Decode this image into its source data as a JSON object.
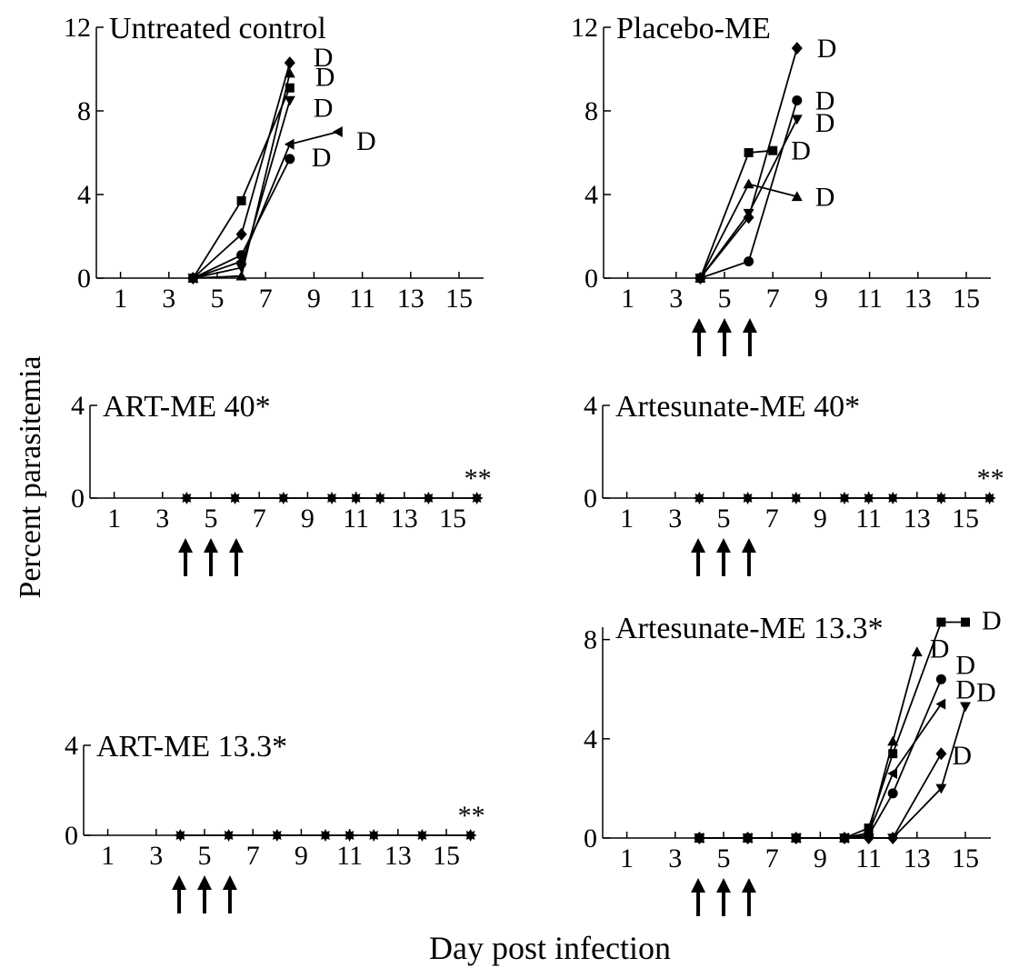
{
  "figure": {
    "ylabel": "Percent parasitemia",
    "xlabel": "Day post infection",
    "arrow_days": [
      4,
      5,
      6
    ]
  },
  "chart_data": [
    {
      "id": "untreated",
      "type": "line",
      "title": "Untreated control",
      "xticks": [
        1,
        3,
        5,
        7,
        9,
        11,
        13,
        15
      ],
      "yticks": [
        0,
        4,
        8,
        12
      ],
      "xlim": [
        0,
        16
      ],
      "ylim": [
        0,
        12
      ],
      "series": [
        {
          "marker": "square",
          "x": [
            4,
            6,
            8
          ],
          "y": [
            0,
            3.7,
            9.1
          ],
          "label": "D"
        },
        {
          "marker": "diamond",
          "x": [
            4,
            6,
            8
          ],
          "y": [
            0,
            2.1,
            10.3
          ],
          "label": "D"
        },
        {
          "marker": "tri-down",
          "x": [
            4,
            6,
            8
          ],
          "y": [
            0,
            0.5,
            8.5
          ],
          "label": "D"
        },
        {
          "marker": "tri-left",
          "x": [
            4,
            6,
            8,
            10
          ],
          "y": [
            0,
            0.8,
            6.4,
            7.0
          ],
          "label": "D"
        },
        {
          "marker": "circle",
          "x": [
            4,
            6,
            8
          ],
          "y": [
            0,
            1.1,
            5.7
          ],
          "label": "D"
        },
        {
          "marker": "tri-up",
          "x": [
            4,
            6,
            8
          ],
          "y": [
            0,
            0.1,
            9.8
          ]
        }
      ]
    },
    {
      "id": "placebo",
      "type": "line",
      "title": "Placebo-ME",
      "xticks": [
        1,
        3,
        5,
        7,
        9,
        11,
        13,
        15
      ],
      "yticks": [
        0,
        4,
        8,
        12
      ],
      "xlim": [
        0,
        16
      ],
      "ylim": [
        0,
        12
      ],
      "series": [
        {
          "marker": "diamond",
          "x": [
            4,
            6,
            8
          ],
          "y": [
            0,
            2.9,
            11.0
          ],
          "label": "D"
        },
        {
          "marker": "circle",
          "x": [
            4,
            6,
            8
          ],
          "y": [
            0,
            0.8,
            8.5
          ],
          "label": "D"
        },
        {
          "marker": "tri-down",
          "x": [
            4,
            6,
            8
          ],
          "y": [
            0,
            3.1,
            7.6
          ],
          "label": "D"
        },
        {
          "marker": "square",
          "x": [
            4,
            6,
            7
          ],
          "y": [
            0,
            6.0,
            6.1
          ],
          "label": "D"
        },
        {
          "marker": "tri-up",
          "x": [
            4,
            6,
            8
          ],
          "y": [
            0,
            4.5,
            3.9
          ],
          "label": "D"
        }
      ]
    },
    {
      "id": "artme40",
      "type": "line",
      "title": "ART-ME 40*",
      "xticks": [
        1,
        3,
        5,
        7,
        9,
        11,
        13,
        15
      ],
      "yticks": [
        0,
        4
      ],
      "xlim": [
        0,
        16
      ],
      "ylim": [
        0,
        4
      ],
      "series": [
        {
          "marker": "star",
          "x": [
            4,
            6,
            8,
            10,
            11,
            12,
            14,
            16
          ],
          "y": [
            0,
            0,
            0,
            0,
            0,
            0,
            0,
            0
          ],
          "label": "**"
        }
      ]
    },
    {
      "id": "artesunate40",
      "type": "line",
      "title": "Artesunate-ME 40*",
      "xticks": [
        1,
        3,
        5,
        7,
        9,
        11,
        13,
        15
      ],
      "yticks": [
        0,
        4
      ],
      "xlim": [
        0,
        16
      ],
      "ylim": [
        0,
        4
      ],
      "series": [
        {
          "marker": "star",
          "x": [
            4,
            6,
            8,
            10,
            11,
            12,
            14,
            16
          ],
          "y": [
            0,
            0,
            0,
            0,
            0,
            0,
            0,
            0
          ],
          "label": "**"
        }
      ]
    },
    {
      "id": "artme13",
      "type": "line",
      "title": "ART-ME 13.3*",
      "xticks": [
        1,
        3,
        5,
        7,
        9,
        11,
        13,
        15
      ],
      "yticks": [
        0,
        4
      ],
      "xlim": [
        0,
        16
      ],
      "ylim": [
        0,
        4
      ],
      "series": [
        {
          "marker": "star",
          "x": [
            4,
            6,
            8,
            10,
            11,
            12,
            14,
            16
          ],
          "y": [
            0,
            0,
            0,
            0,
            0,
            0,
            0,
            0
          ],
          "label": "**"
        }
      ]
    },
    {
      "id": "artesunate13",
      "type": "line",
      "title": "Artesunate-ME 13.3*",
      "xticks": [
        1,
        3,
        5,
        7,
        9,
        11,
        13,
        15
      ],
      "yticks": [
        0,
        4,
        8
      ],
      "xlim": [
        0,
        16
      ],
      "ylim": [
        0,
        8.5
      ],
      "series": [
        {
          "marker": "tri-up",
          "x": [
            4,
            6,
            8,
            10,
            11,
            12,
            13
          ],
          "y": [
            0,
            0,
            0,
            0,
            0.2,
            3.9,
            7.5
          ],
          "label": "D"
        },
        {
          "marker": "square",
          "x": [
            4,
            6,
            8,
            10,
            11,
            12,
            14,
            15
          ],
          "y": [
            0,
            0,
            0,
            0,
            0.4,
            3.4,
            8.7,
            8.7
          ],
          "label": "D"
        },
        {
          "marker": "circle",
          "x": [
            4,
            6,
            8,
            10,
            11,
            12,
            14
          ],
          "y": [
            0,
            0,
            0,
            0,
            0.1,
            1.8,
            6.4
          ],
          "label": "D"
        },
        {
          "marker": "tri-left",
          "x": [
            4,
            6,
            8,
            10,
            11,
            12,
            14
          ],
          "y": [
            0,
            0,
            0,
            0,
            0.2,
            2.6,
            5.4
          ],
          "label": "D"
        },
        {
          "marker": "tri-down",
          "x": [
            4,
            6,
            8,
            10,
            11,
            12,
            14,
            15
          ],
          "y": [
            0,
            0,
            0,
            0,
            0,
            0,
            2.0,
            5.3
          ],
          "label": "D"
        },
        {
          "marker": "diamond",
          "x": [
            4,
            6,
            8,
            10,
            11,
            12,
            14
          ],
          "y": [
            0,
            0,
            0,
            0,
            0,
            0,
            3.4
          ],
          "label": "D"
        }
      ]
    }
  ]
}
